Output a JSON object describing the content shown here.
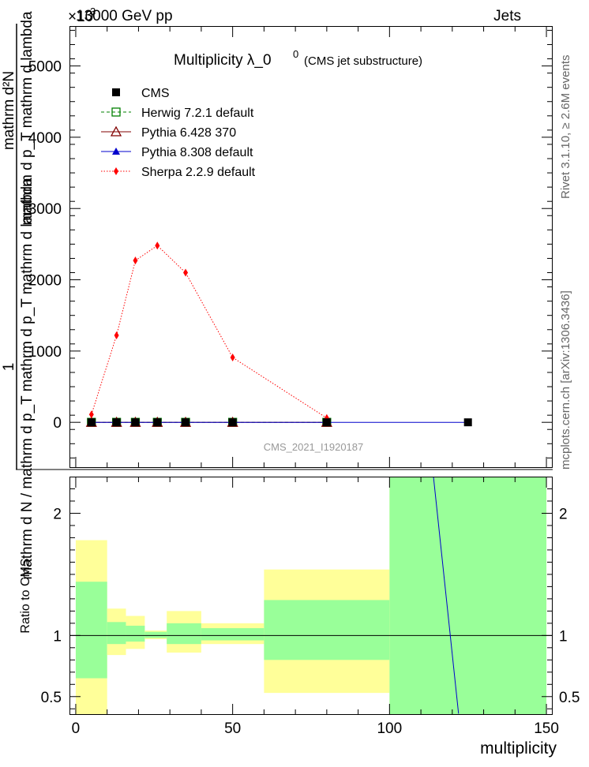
{
  "header": {
    "left": "13000 GeV pp",
    "right": "Jets",
    "exponent_label": "×10",
    "exponent_sup": "3"
  },
  "side_labels": {
    "rivet": "Rivet 3.1.10, ≥ 2.6M events",
    "mcplots": "mcplots.cern.ch [arXiv:1306.3436]"
  },
  "chart_data": [
    {
      "type": "scatter",
      "title_main": "Multiplicity  λ_0",
      "title_sup": "0",
      "title_sub": "(CMS jet substructure)",
      "ylabel_one": "1",
      "ylabel_den": "mathrm d N / mathrm d p_T mathrm d p_T mathrm d lambda",
      "ylabel_num": "mathrm d²N",
      "ylabel_num_den": "mathrm d p_T mathrm d lambda",
      "analysis_id": "CMS_2021_I1920187",
      "xlim": [
        -2,
        152
      ],
      "ylim": [
        -640,
        5560
      ],
      "yticks": [
        0,
        1000,
        2000,
        3000,
        4000,
        5000
      ],
      "ytick_labels": [
        "0",
        "1000",
        "2000",
        "3000",
        "4000",
        "5000"
      ],
      "legend_position": "top-left",
      "series": [
        {
          "name": "CMS",
          "color": "#000000",
          "marker": "square-filled",
          "x": [
            5,
            13,
            19,
            26,
            35,
            50,
            80,
            125
          ],
          "y": [
            0,
            0,
            0,
            0,
            0,
            0,
            0,
            0
          ]
        },
        {
          "name": "Herwig 7.2.1 default",
          "color": "#008000",
          "marker": "square-open",
          "line": "dashed",
          "x": [
            5,
            13,
            19,
            26,
            35,
            50,
            80
          ],
          "y": [
            0,
            0,
            0,
            0,
            0,
            0,
            0
          ]
        },
        {
          "name": "Pythia 6.428 370",
          "color": "#800000",
          "marker": "triangle-open",
          "line": "solid",
          "x": [
            5,
            13,
            19,
            26,
            35,
            50,
            80
          ],
          "y": [
            0,
            0,
            0,
            0,
            0,
            0,
            0
          ]
        },
        {
          "name": "Pythia 8.308 default",
          "color": "#0000cc",
          "marker": "triangle-filled",
          "line": "solid",
          "x": [
            5,
            13,
            19,
            26,
            35,
            50,
            80,
            125
          ],
          "y": [
            0,
            0,
            0,
            0,
            0,
            0,
            0,
            0
          ]
        },
        {
          "name": "Sherpa 2.2.9 default",
          "color": "#ff0000",
          "marker": "diamond",
          "line": "dotted",
          "x": [
            5,
            13,
            19,
            26,
            35,
            50,
            80
          ],
          "y": [
            110,
            1220,
            2270,
            2480,
            2100,
            910,
            60
          ]
        }
      ]
    },
    {
      "type": "area",
      "ylabel": "Ratio to CMS",
      "xlabel": "multiplicity",
      "xlim": [
        -2,
        152
      ],
      "ylim": [
        0.35,
        2.3
      ],
      "yticks": [
        0.5,
        1,
        2
      ],
      "ytick_labels": [
        "0.5",
        "1",
        "2"
      ],
      "xticks": [
        0,
        50,
        100,
        150
      ],
      "xtick_labels": [
        "0",
        "50",
        "100",
        "150"
      ],
      "bands": [
        {
          "x0": 0,
          "x1": 10,
          "yellow": [
            0.35,
            1.78
          ],
          "green": [
            0.65,
            1.44
          ]
        },
        {
          "x0": 10,
          "x1": 16,
          "yellow": [
            0.84,
            1.22
          ],
          "green": [
            0.93,
            1.11
          ]
        },
        {
          "x0": 16,
          "x1": 22,
          "yellow": [
            0.89,
            1.16
          ],
          "green": [
            0.95,
            1.08
          ]
        },
        {
          "x0": 22,
          "x1": 29,
          "yellow": [
            0.97,
            1.04
          ],
          "green": [
            0.98,
            1.03
          ]
        },
        {
          "x0": 29,
          "x1": 40,
          "yellow": [
            0.86,
            1.2
          ],
          "green": [
            0.93,
            1.1
          ]
        },
        {
          "x0": 40,
          "x1": 60,
          "yellow": [
            0.93,
            1.1
          ],
          "green": [
            0.96,
            1.06
          ]
        },
        {
          "x0": 60,
          "x1": 100,
          "yellow": [
            0.53,
            1.54
          ],
          "green": [
            0.8,
            1.29
          ]
        },
        {
          "x0": 100,
          "x1": 150,
          "yellow": [
            0.35,
            2.3
          ],
          "green": [
            0.35,
            2.3
          ]
        }
      ],
      "ratio_lines": [
        {
          "name": "Pythia 8.308 default",
          "color": "#0000cc",
          "x": [
            114,
            122
          ],
          "y": [
            2.3,
            0.36
          ]
        }
      ]
    }
  ]
}
